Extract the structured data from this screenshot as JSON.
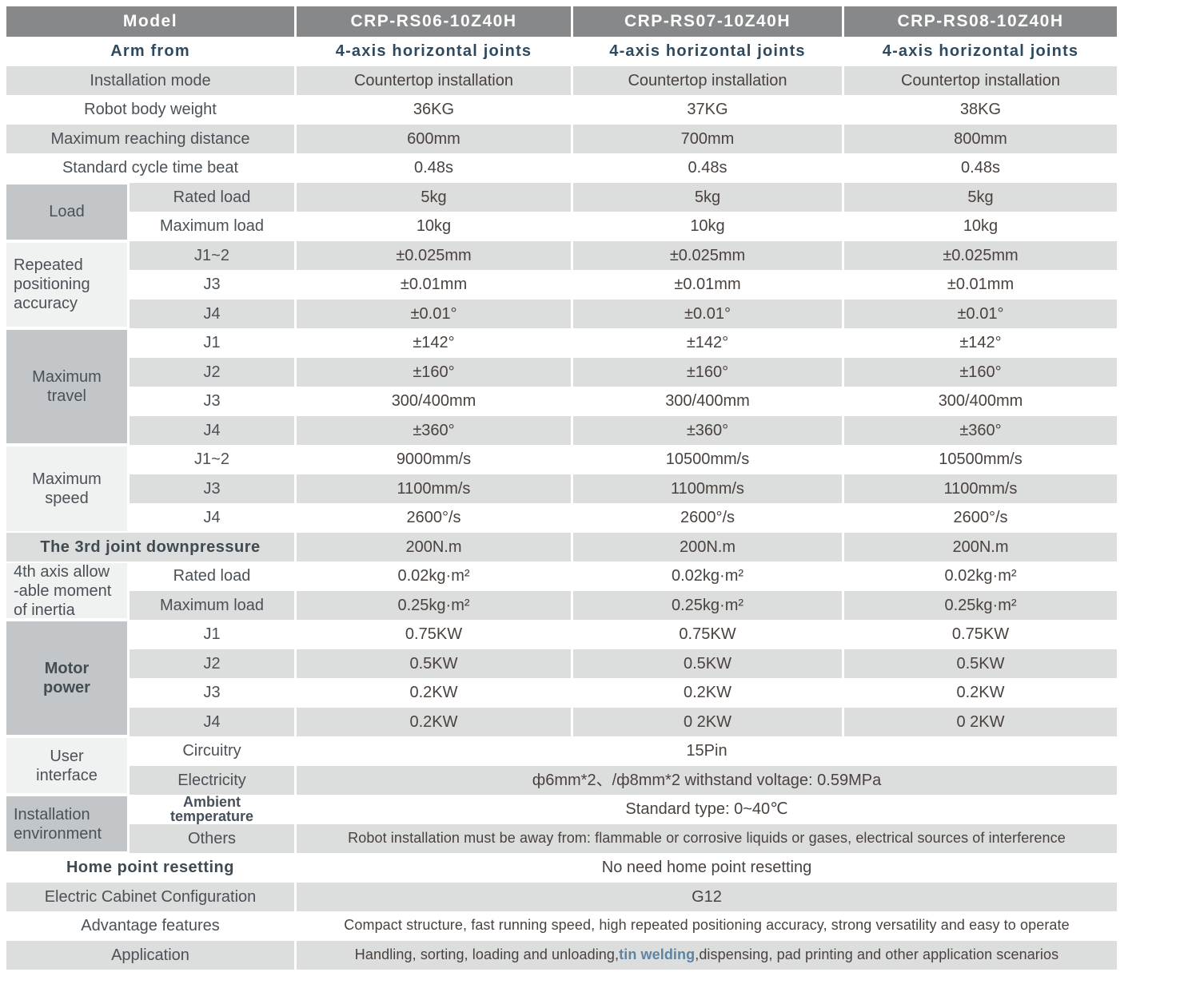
{
  "colors": {
    "header_bg": "#87888a",
    "header_text": "#ffffff",
    "stripe_gray": "#dcdddd",
    "group_dark_gray": "#c3c6c8",
    "group_light_gray": "#f0f1f1",
    "label_text": "#4a5157",
    "value_text": "#4a423e",
    "accent_text": "#2f4a5e",
    "highlight_text": "#5d84a1"
  },
  "header": {
    "label": "Model",
    "models": [
      "CRP-RS06-10Z40H",
      "CRP-RS07-10Z40H",
      "CRP-RS08-10Z40H"
    ]
  },
  "rows": [
    {
      "label": "Arm from",
      "accent": true,
      "values": [
        "4-axis horizontal joints",
        "4-axis horizontal joints",
        "4-axis horizontal joints"
      ]
    },
    {
      "label": "Installation mode",
      "stripe": true,
      "values": [
        "Countertop installation",
        "Countertop installation",
        "Countertop installation"
      ]
    },
    {
      "label": "Robot body weight",
      "values": [
        "36KG",
        "37KG",
        "38KG"
      ]
    },
    {
      "label": "Maximum reaching distance",
      "stripe": true,
      "values": [
        "600mm",
        "700mm",
        "800mm"
      ]
    },
    {
      "label": "Standard cycle time beat",
      "values": [
        "0.48s",
        "0.48s",
        "0.48s"
      ]
    },
    {
      "group": {
        "label": "Load",
        "rows": 2,
        "shade": "dark",
        "align": "center"
      },
      "sublabel": "Rated load",
      "stripe": true,
      "values": [
        "5kg",
        "5kg",
        "5kg"
      ]
    },
    {
      "sublabel": "Maximum load",
      "values": [
        "10kg",
        "10kg",
        "10kg"
      ]
    },
    {
      "group": {
        "label": "Repeated\npositioning\naccuracy",
        "rows": 3,
        "shade": "light",
        "align": "left"
      },
      "sublabel": "J1~2",
      "stripe": true,
      "values": [
        "±0.025mm",
        "±0.025mm",
        "±0.025mm"
      ]
    },
    {
      "sublabel": "J3",
      "values": [
        "±0.01mm",
        "±0.01mm",
        "±0.01mm"
      ]
    },
    {
      "sublabel": "J4",
      "stripe": true,
      "values": [
        "±0.01°",
        "±0.01°",
        "±0.01°"
      ]
    },
    {
      "group": {
        "label": "Maximum\ntravel",
        "rows": 4,
        "shade": "dark",
        "align": "center"
      },
      "sublabel": "J1",
      "values": [
        "±142°",
        "±142°",
        "±142°"
      ]
    },
    {
      "sublabel": "J2",
      "stripe": true,
      "values": [
        "±160°",
        "±160°",
        "±160°"
      ]
    },
    {
      "sublabel": "J3",
      "values": [
        "300/400mm",
        "300/400mm",
        "300/400mm"
      ]
    },
    {
      "sublabel": "J4",
      "stripe": true,
      "values": [
        "±360°",
        "±360°",
        "±360°"
      ]
    },
    {
      "group": {
        "label": "Maximum\nspeed",
        "rows": 3,
        "shade": "light",
        "align": "center"
      },
      "sublabel": "J1~2",
      "values": [
        "9000mm/s",
        "10500mm/s",
        "10500mm/s"
      ]
    },
    {
      "sublabel": "J3",
      "stripe": true,
      "values": [
        "1100mm/s",
        "1100mm/s",
        "1100mm/s"
      ]
    },
    {
      "sublabel": "J4",
      "values": [
        "2600°/s",
        "2600°/s",
        "2600°/s"
      ]
    },
    {
      "label": "The 3rd joint downpressure",
      "bold": true,
      "stripe": true,
      "values": [
        "200N.m",
        "200N.m",
        "200N.m"
      ]
    },
    {
      "group": {
        "label": "4th axis allow\n-able moment\nof inertia",
        "rows": 2,
        "shade": "light",
        "align": "left"
      },
      "sublabel": "Rated load",
      "values": [
        "0.02kg·m²",
        "0.02kg·m²",
        "0.02kg·m²"
      ]
    },
    {
      "sublabel": "Maximum load",
      "stripe": true,
      "values": [
        "0.25kg·m²",
        "0.25kg·m²",
        "0.25kg·m²"
      ]
    },
    {
      "group": {
        "label": "Motor\npower",
        "rows": 4,
        "shade": "dark",
        "align": "center",
        "bold": true
      },
      "sublabel": "J1",
      "values": [
        "0.75KW",
        "0.75KW",
        "0.75KW"
      ]
    },
    {
      "sublabel": "J2",
      "stripe": true,
      "values": [
        "0.5KW",
        "0.5KW",
        "0.5KW"
      ]
    },
    {
      "sublabel": "J3",
      "values": [
        "0.2KW",
        "0.2KW",
        "0.2KW"
      ]
    },
    {
      "sublabel": "J4",
      "stripe": true,
      "values": [
        "0.2KW",
        "0 2KW",
        "0 2KW"
      ]
    },
    {
      "group": {
        "label": "User\ninterface",
        "rows": 2,
        "shade": "light",
        "align": "center"
      },
      "sublabel": "Circuitry",
      "span": "15Pin"
    },
    {
      "sublabel": "Electricity",
      "stripe": true,
      "span": "ф6mm*2、/ф8mm*2  withstand voltage: 0.59MPa"
    },
    {
      "group": {
        "label": "Installation\nenvironment",
        "rows": 2,
        "shade": "dark",
        "align": "left"
      },
      "sublabel": "Ambient\ntemperature",
      "span": "Standard type:   0~40℃"
    },
    {
      "sublabel": "Others",
      "stripe": true,
      "small": true,
      "span": "Robot installation must be away from: flammable or corrosive liquids or gases, electrical sources of interference"
    },
    {
      "label": "Home point resetting",
      "bold": true,
      "span": "No need home point resetting"
    },
    {
      "label": "Electric Cabinet Configuration",
      "stripe": true,
      "span": "G12"
    },
    {
      "label": "Advantage features",
      "small": true,
      "span": "Compact structure, fast running speed, high repeated positioning accuracy, strong versatility and easy to operate"
    },
    {
      "label": "Application",
      "stripe": true,
      "small": true,
      "span_rich": {
        "prefix": "Handling, sorting, loading and unloading,",
        "highlight": "tin welding",
        "suffix": ",dispensing, pad printing and other application scenarios"
      }
    }
  ]
}
